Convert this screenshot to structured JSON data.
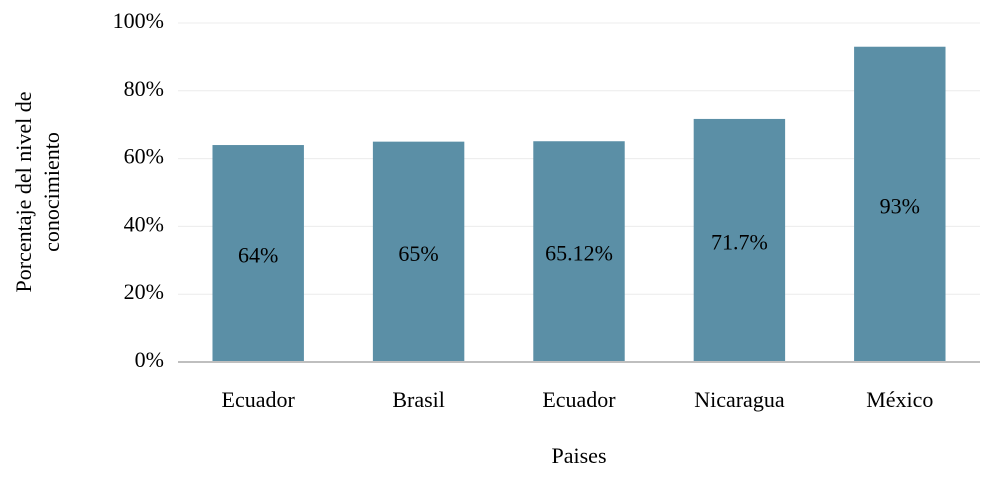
{
  "chart_data": {
    "type": "bar",
    "x_label": "Paises",
    "y_label": [
      "Porcentaje del nivel de",
      "conocimiento"
    ],
    "categories": [
      "Ecuador",
      "Brasil",
      "Ecuador",
      "Nicaragua",
      "México"
    ],
    "values": [
      64,
      65,
      65.12,
      71.7,
      93
    ],
    "value_labels": [
      "64%",
      "65%",
      "65.12%",
      "71.7%",
      "93%"
    ],
    "color": "#5b8fa6",
    "ylim": [
      0,
      100
    ],
    "yticks": [
      {
        "value": 0,
        "label": "0%"
      },
      {
        "value": 20,
        "label": "20%"
      },
      {
        "value": 40,
        "label": "40%"
      },
      {
        "value": 60,
        "label": "60%"
      },
      {
        "value": 80,
        "label": "80%"
      },
      {
        "value": 100,
        "label": "100%"
      }
    ],
    "grid": true
  }
}
